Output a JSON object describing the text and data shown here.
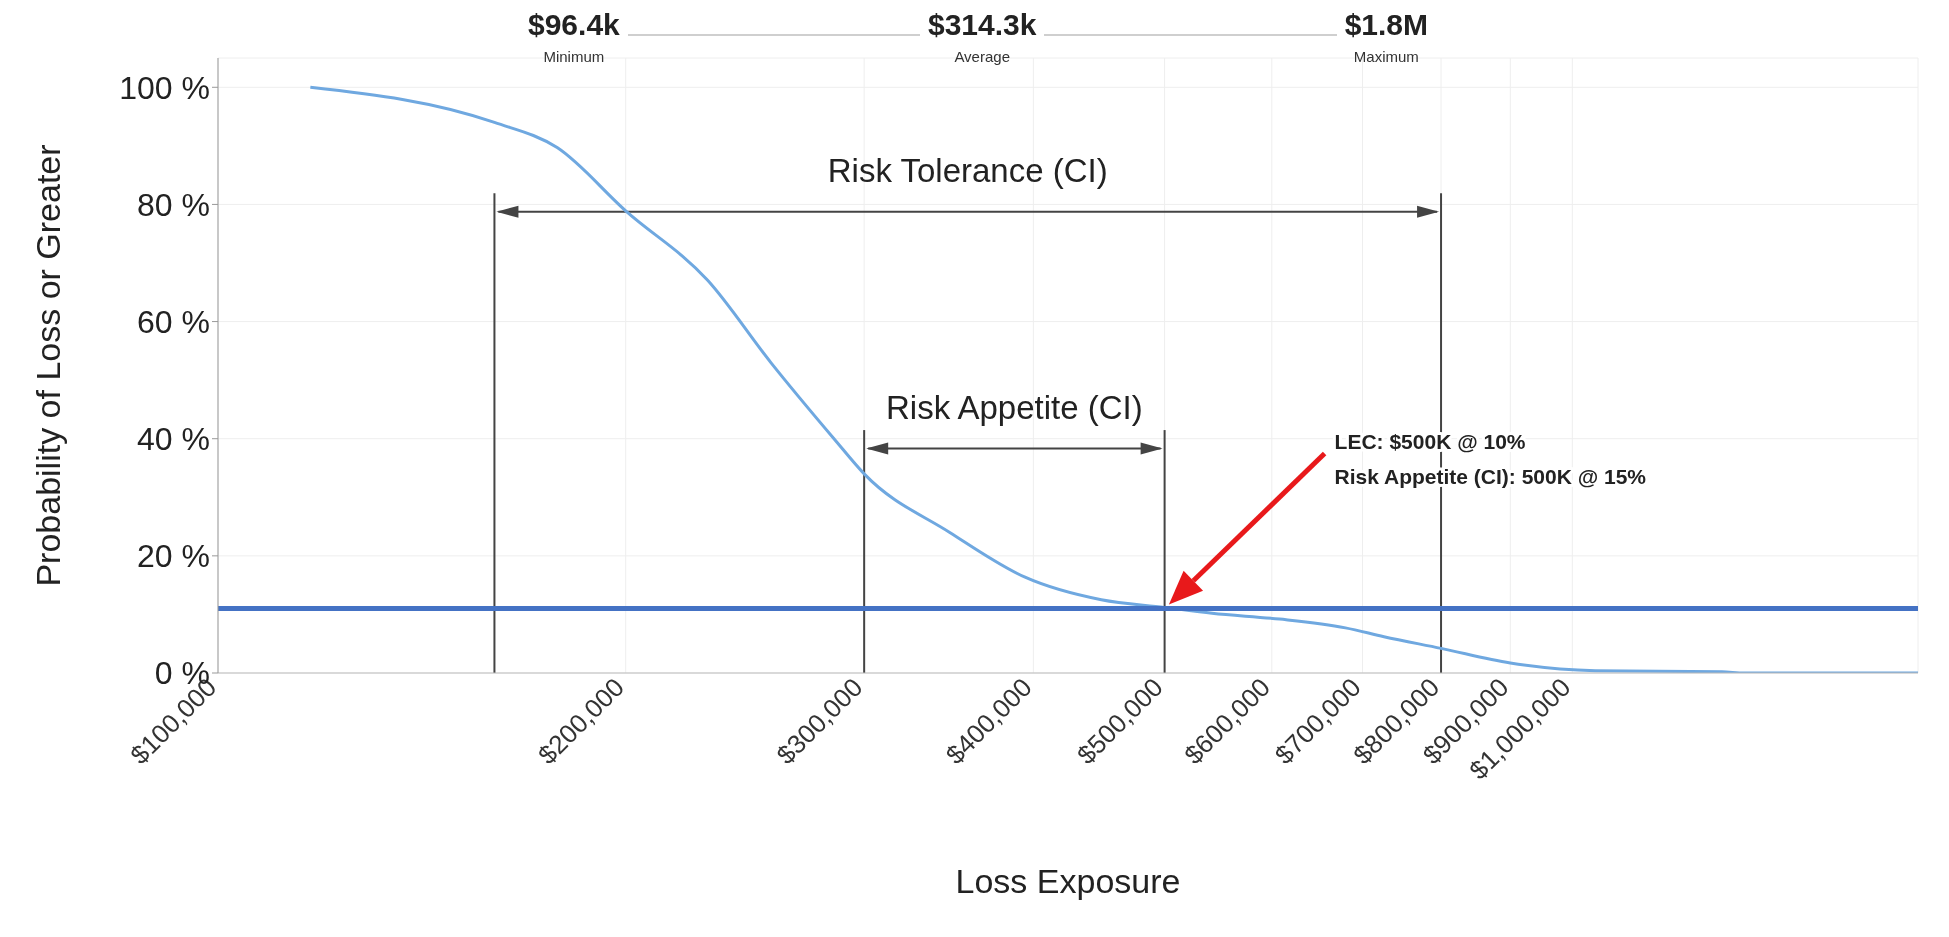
{
  "chart_data": {
    "type": "line",
    "xlabel": "Loss Exposure",
    "ylabel": "Probability of Loss or Greater",
    "x": [
      117000,
      160000,
      178000,
      200000,
      230000,
      256000,
      285000,
      300000,
      347000,
      394000,
      449000,
      500000,
      542000,
      608000,
      680000,
      726000,
      800000,
      900000,
      1040000,
      1290000,
      1340000,
      1800000
    ],
    "series": [
      {
        "color": "#6fa8e0",
        "values": [
          100,
          94,
          89.7,
          78.9,
          67,
          53,
          40,
          34,
          24,
          16.4,
          12.5,
          11.2,
          10.2,
          9.2,
          7.7,
          6.2,
          4.2,
          1.7,
          0.4,
          0.2,
          0,
          0
        ]
      }
    ],
    "log": "x",
    "xlim": [
      100000,
      1800000
    ],
    "xticks": [
      {
        "value": 100000,
        "label": "$100,000"
      },
      {
        "value": 200000,
        "label": "$200,000"
      },
      {
        "value": 300000,
        "label": "$300,000"
      },
      {
        "value": 400000,
        "label": "$400,000"
      },
      {
        "value": 500000,
        "label": "$500,000"
      },
      {
        "value": 600000,
        "label": "$600,000"
      },
      {
        "value": 700000,
        "label": "$700,000"
      },
      {
        "value": 800000,
        "label": "$800,000"
      },
      {
        "value": 900000,
        "label": "$900,000"
      },
      {
        "value": 1000000,
        "label": "$1,000,000"
      }
    ],
    "ylim": [
      0,
      105
    ],
    "yticks": [
      {
        "value": 0,
        "label": "0 %"
      },
      {
        "value": 20,
        "label": "20 %"
      },
      {
        "value": 40,
        "label": "40 %"
      },
      {
        "value": 60,
        "label": "60 %"
      },
      {
        "value": 80,
        "label": "80 %"
      },
      {
        "value": 100,
        "label": "100 %"
      }
    ],
    "grid": true,
    "marker": "none",
    "line_style": "solid",
    "ref_lines": [
      {
        "axis": "y",
        "value": 11,
        "color": "#4472c4"
      },
      {
        "axis": "x",
        "value": 160000,
        "color": "#444444"
      },
      {
        "axis": "x",
        "value": 300000,
        "color": "#444444"
      },
      {
        "axis": "x",
        "value": 500000,
        "color": "#444444"
      },
      {
        "axis": "x",
        "value": 800000,
        "color": "#444444"
      }
    ],
    "annotations": [
      "$96.4k",
      "Minimum",
      "$314.3k",
      "Average",
      "$1.8M",
      "Maximum",
      "LEC: $500K @ 10%",
      "Risk Appetite (CI): 500K @ 15%",
      "Risk Tolerance (CI)",
      "Risk Appetite (CI)"
    ]
  }
}
